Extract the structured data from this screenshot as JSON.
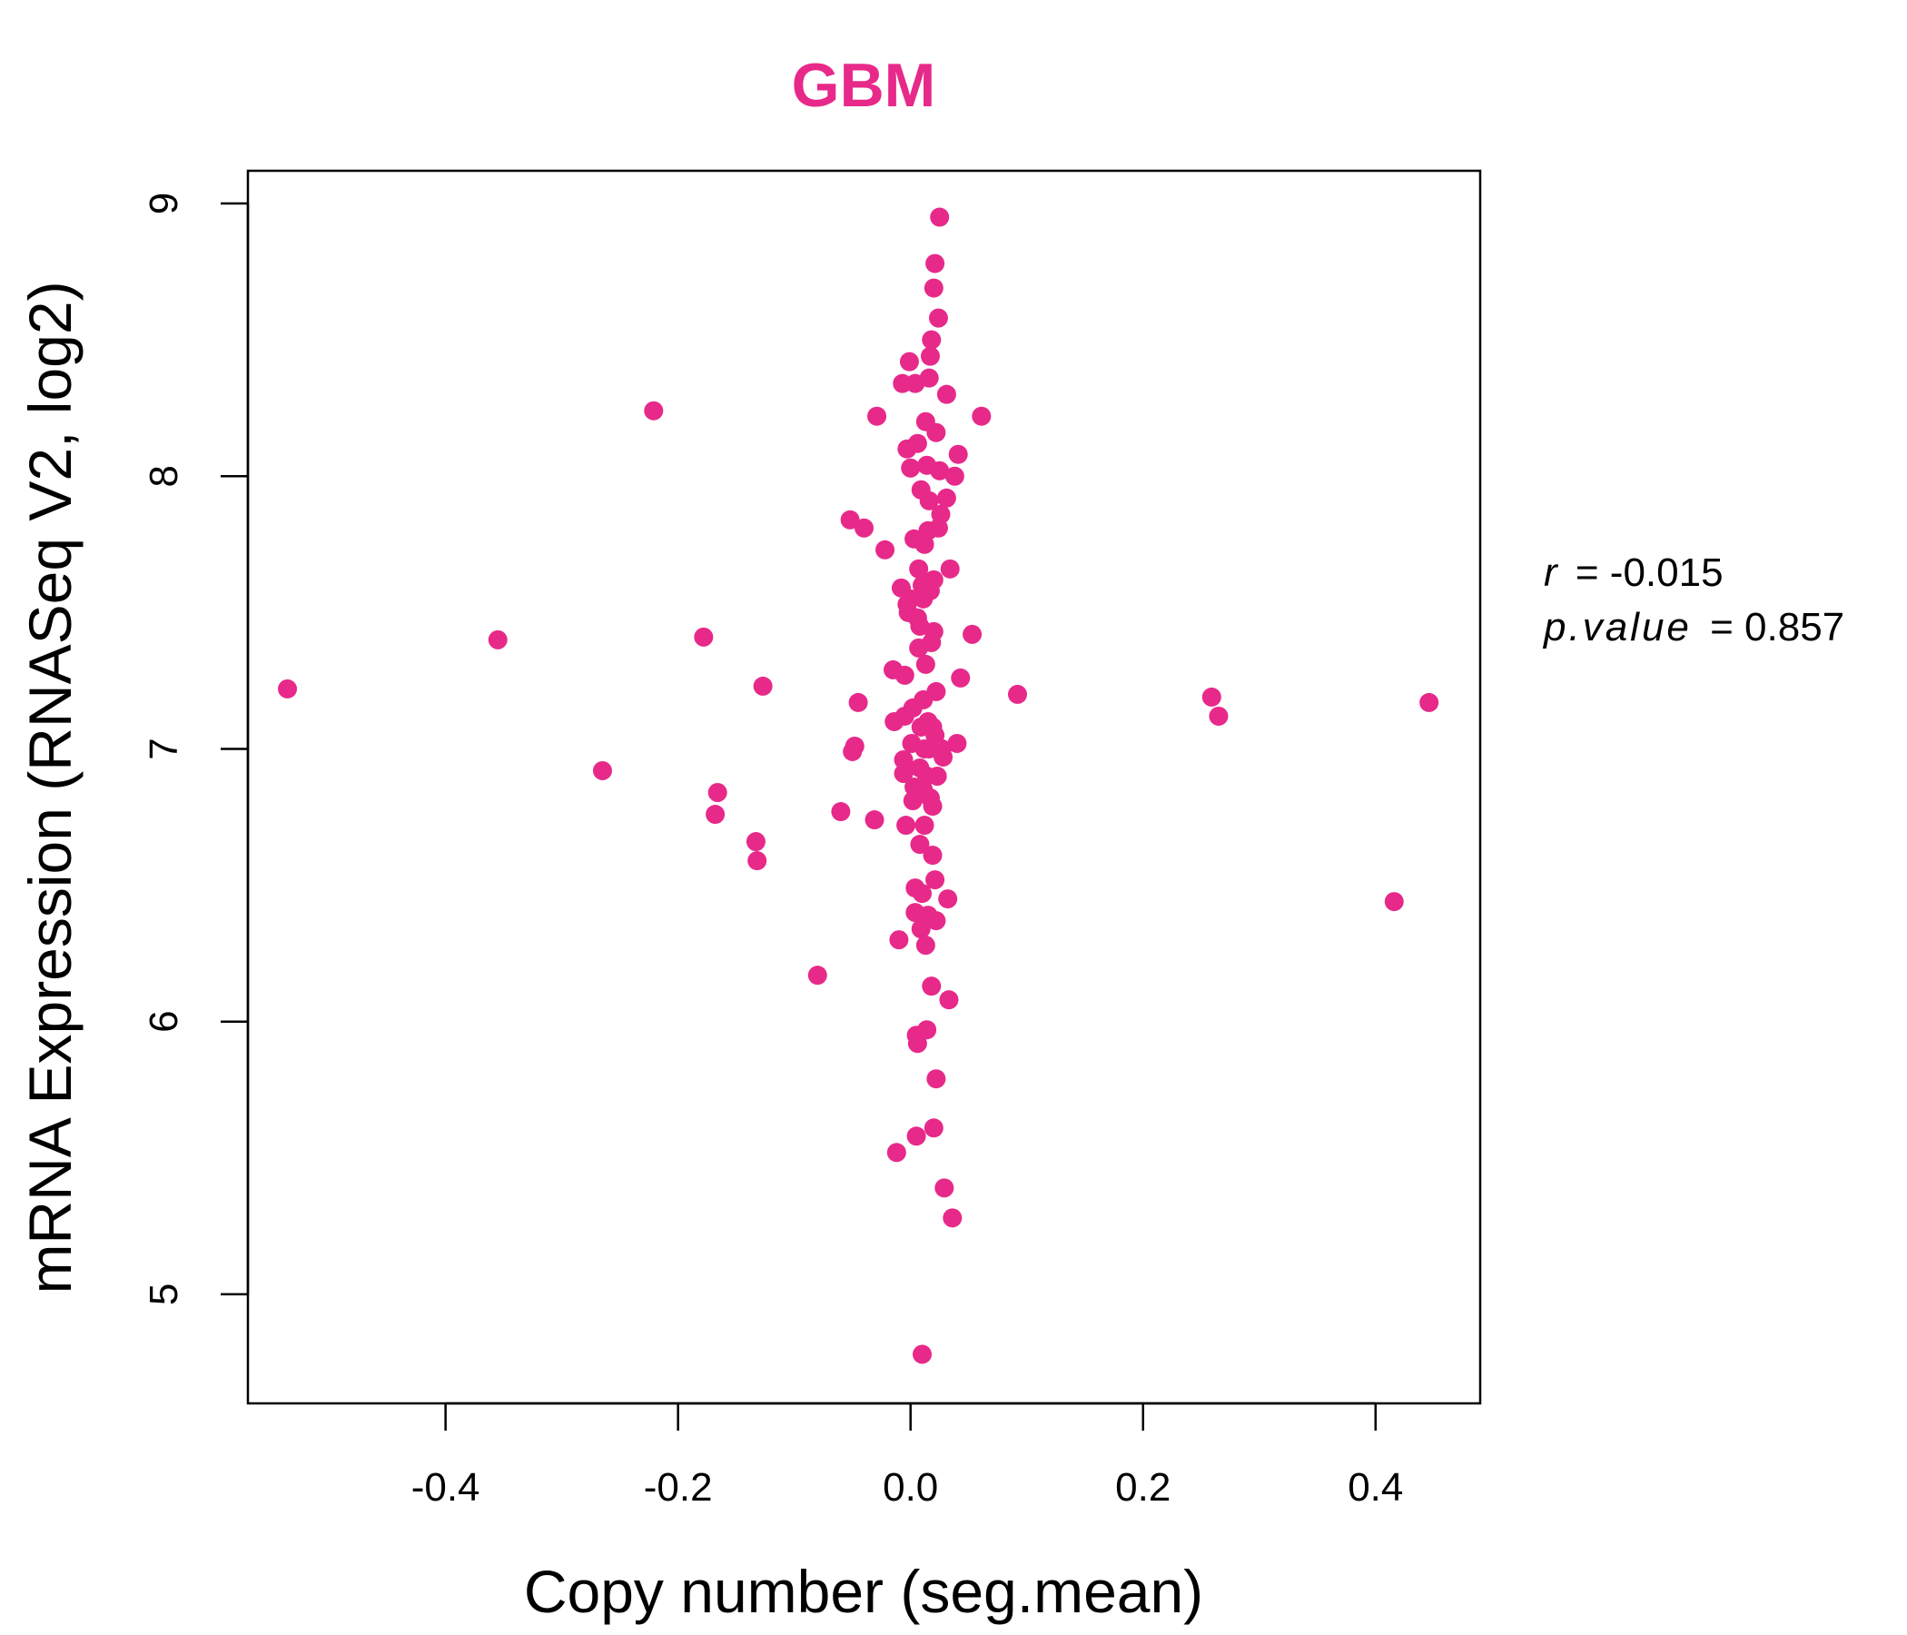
{
  "chart_data": {
    "type": "scatter",
    "title": "GBM",
    "xlabel": "Copy number (seg.mean)",
    "ylabel": "mRNA Expression (RNASeq V2, log2)",
    "xlim": [
      -0.57,
      0.49
    ],
    "ylim": [
      4.6,
      9.12
    ],
    "x_ticks": [
      "-0.4",
      "-0.2",
      "0.0",
      "0.2",
      "0.4"
    ],
    "x_tick_values": [
      -0.4,
      -0.2,
      0.0,
      0.2,
      0.4
    ],
    "y_ticks": [
      "5",
      "6",
      "7",
      "8",
      "9"
    ],
    "y_tick_values": [
      5,
      6,
      7,
      8,
      9
    ],
    "grid": false,
    "point_color": "#E7298A",
    "annotation": {
      "r_label": "r",
      "r_value": "= -0.015",
      "p_label": "p.value",
      "p_value": "= 0.857"
    },
    "points": [
      [
        -0.536,
        7.22
      ],
      [
        -0.355,
        7.4
      ],
      [
        -0.265,
        6.92
      ],
      [
        -0.221,
        8.24
      ],
      [
        -0.178,
        7.41
      ],
      [
        -0.166,
        6.84
      ],
      [
        -0.168,
        6.76
      ],
      [
        -0.133,
        6.66
      ],
      [
        -0.132,
        6.59
      ],
      [
        -0.127,
        7.23
      ],
      [
        -0.08,
        6.17
      ],
      [
        -0.06,
        6.77
      ],
      [
        -0.052,
        7.84
      ],
      [
        -0.05,
        6.99
      ],
      [
        -0.048,
        7.01
      ],
      [
        -0.045,
        7.17
      ],
      [
        -0.04,
        7.81
      ],
      [
        -0.031,
        6.74
      ],
      [
        -0.029,
        8.22
      ],
      [
        -0.022,
        7.73
      ],
      [
        -0.015,
        7.29
      ],
      [
        -0.014,
        7.1
      ],
      [
        -0.012,
        5.52
      ],
      [
        -0.01,
        6.3
      ],
      [
        -0.008,
        7.59
      ],
      [
        -0.007,
        8.34
      ],
      [
        -0.006,
        6.96
      ],
      [
        -0.006,
        6.91
      ],
      [
        -0.005,
        7.12
      ],
      [
        -0.005,
        7.27
      ],
      [
        -0.004,
        6.72
      ],
      [
        -0.003,
        8.1
      ],
      [
        -0.003,
        7.53
      ],
      [
        -0.002,
        7.5
      ],
      [
        -0.001,
        8.42
      ],
      [
        0.0,
        8.03
      ],
      [
        0.0,
        7.55
      ],
      [
        0.001,
        7.02
      ],
      [
        0.002,
        6.81
      ],
      [
        0.002,
        7.15
      ],
      [
        0.003,
        6.86
      ],
      [
        0.003,
        7.77
      ],
      [
        0.004,
        8.34
      ],
      [
        0.004,
        6.49
      ],
      [
        0.004,
        6.4
      ],
      [
        0.005,
        5.58
      ],
      [
        0.005,
        5.95
      ],
      [
        0.006,
        5.92
      ],
      [
        0.006,
        7.48
      ],
      [
        0.006,
        8.12
      ],
      [
        0.007,
        7.37
      ],
      [
        0.007,
        7.66
      ],
      [
        0.008,
        6.65
      ],
      [
        0.008,
        6.93
      ],
      [
        0.008,
        7.45
      ],
      [
        0.009,
        7.95
      ],
      [
        0.009,
        6.34
      ],
      [
        0.009,
        7.08
      ],
      [
        0.01,
        4.78
      ],
      [
        0.01,
        7.6
      ],
      [
        0.01,
        6.47
      ],
      [
        0.011,
        7.18
      ],
      [
        0.011,
        7.55
      ],
      [
        0.011,
        6.85
      ],
      [
        0.012,
        7.75
      ],
      [
        0.012,
        6.72
      ],
      [
        0.012,
        7.0
      ],
      [
        0.013,
        6.28
      ],
      [
        0.013,
        8.2
      ],
      [
        0.013,
        7.31
      ],
      [
        0.014,
        8.04
      ],
      [
        0.014,
        5.97
      ],
      [
        0.014,
        6.9
      ],
      [
        0.015,
        7.1
      ],
      [
        0.015,
        6.39
      ],
      [
        0.015,
        7.8
      ],
      [
        0.016,
        7.91
      ],
      [
        0.016,
        8.36
      ],
      [
        0.016,
        7.0
      ],
      [
        0.017,
        8.44
      ],
      [
        0.017,
        6.82
      ],
      [
        0.017,
        7.58
      ],
      [
        0.018,
        8.5
      ],
      [
        0.018,
        6.13
      ],
      [
        0.018,
        7.39
      ],
      [
        0.019,
        6.61
      ],
      [
        0.019,
        7.08
      ],
      [
        0.019,
        6.79
      ],
      [
        0.02,
        7.62
      ],
      [
        0.02,
        5.61
      ],
      [
        0.02,
        8.69
      ],
      [
        0.02,
        7.43
      ],
      [
        0.021,
        8.78
      ],
      [
        0.021,
        6.52
      ],
      [
        0.021,
        7.05
      ],
      [
        0.022,
        8.16
      ],
      [
        0.022,
        6.37
      ],
      [
        0.022,
        7.21
      ],
      [
        0.022,
        5.79
      ],
      [
        0.023,
        6.9
      ],
      [
        0.023,
        7.01
      ],
      [
        0.024,
        8.58
      ],
      [
        0.024,
        7.81
      ],
      [
        0.025,
        8.95
      ],
      [
        0.025,
        8.02
      ],
      [
        0.026,
        7.86
      ],
      [
        0.027,
        7.0
      ],
      [
        0.028,
        6.97
      ],
      [
        0.029,
        5.39
      ],
      [
        0.031,
        8.3
      ],
      [
        0.031,
        7.92
      ],
      [
        0.032,
        6.45
      ],
      [
        0.033,
        6.08
      ],
      [
        0.034,
        7.66
      ],
      [
        0.036,
        5.28
      ],
      [
        0.038,
        8.0
      ],
      [
        0.04,
        7.02
      ],
      [
        0.041,
        8.08
      ],
      [
        0.043,
        7.26
      ],
      [
        0.053,
        7.42
      ],
      [
        0.061,
        8.22
      ],
      [
        0.092,
        7.2
      ],
      [
        0.259,
        7.19
      ],
      [
        0.265,
        7.12
      ],
      [
        0.416,
        6.44
      ],
      [
        0.446,
        7.17
      ]
    ]
  }
}
